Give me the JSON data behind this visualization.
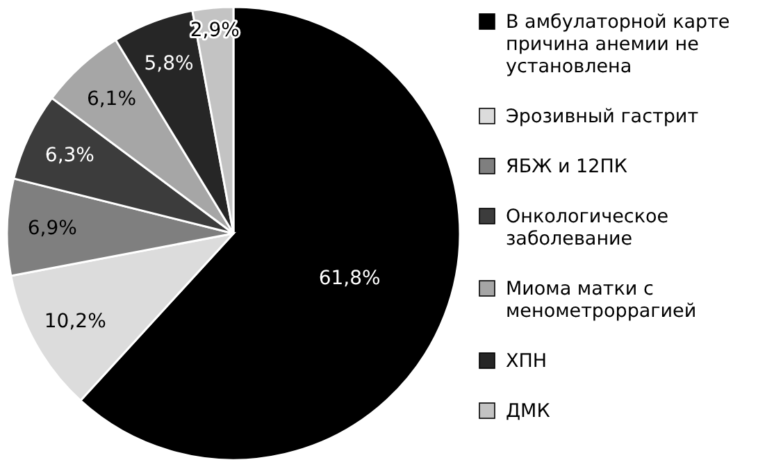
{
  "chart_data": {
    "type": "pie",
    "categories": [
      "В амбулаторной карте причина анемии не установлена",
      "Эрозивный гастрит",
      "ЯБЖ и 12ПК",
      "Онкологическое заболевание",
      "Миома матки с менометроррагией",
      "ХПН",
      "ДМК"
    ],
    "values": [
      61.8,
      10.2,
      6.9,
      6.3,
      6.1,
      5.8,
      2.9
    ],
    "colors": [
      "#000000",
      "#dcdcdc",
      "#7f7f7f",
      "#3c3c3c",
      "#a6a6a6",
      "#262626",
      "#c3c3c3"
    ],
    "value_labels": [
      "61,8%",
      "10,2%",
      "6,9%",
      "6,3%",
      "6,1%",
      "5,8%",
      "2,9%"
    ],
    "legend": "right"
  }
}
